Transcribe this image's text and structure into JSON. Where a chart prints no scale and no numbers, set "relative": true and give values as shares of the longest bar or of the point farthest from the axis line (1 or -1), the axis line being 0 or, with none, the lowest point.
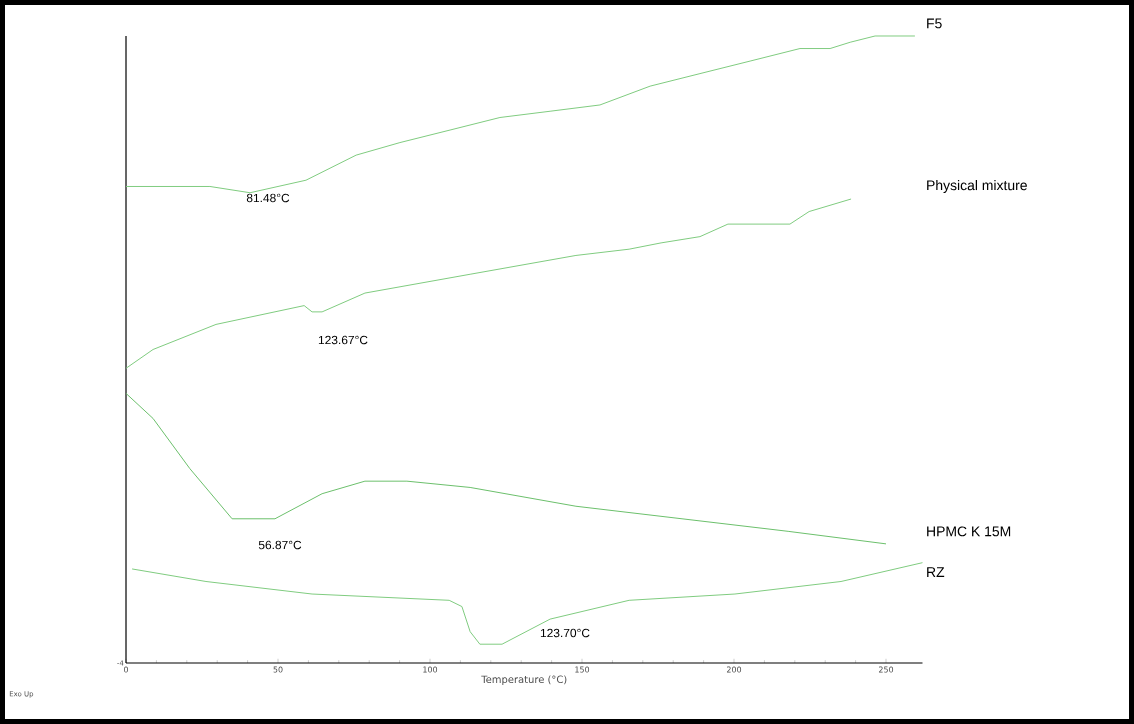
{
  "chart_data": {
    "type": "line",
    "relative": true,
    "xlabel": "Temperature (°C)",
    "xlim": [
      0,
      262
    ],
    "xticks": [
      0,
      50,
      100,
      150,
      200,
      250
    ],
    "marker": "none",
    "line_style": "solid",
    "series": [
      {
        "name": "F5",
        "color": "#80cc80",
        "x": [
          0,
          4.6,
          14.5,
          27.6,
          40.8,
          59.2,
          75.7,
          90.1,
          106.6,
          123,
          139.5,
          155.9,
          172.4,
          188.8,
          205.3,
          221.7,
          231.6,
          238.2,
          246.4,
          251.3,
          259.5
        ],
        "values": [
          0.76,
          0.76,
          0.76,
          0.76,
          0.75,
          0.77,
          0.81,
          0.83,
          0.85,
          0.87,
          0.88,
          0.89,
          0.92,
          0.94,
          0.96,
          0.98,
          0.98,
          0.99,
          1.0,
          1.0,
          1.0
        ]
      },
      {
        "name": "Physical mixture",
        "color": "#80cc80",
        "x": [
          0,
          8.9,
          29.6,
          58.6,
          61.2,
          64.5,
          78.6,
          113.2,
          148,
          165.5,
          176,
          188.8,
          198,
          214.1,
          218.4,
          224.7,
          238.5
        ],
        "values": [
          0.47,
          0.5,
          0.54,
          0.57,
          0.56,
          0.56,
          0.59,
          0.62,
          0.65,
          0.66,
          0.67,
          0.68,
          0.7,
          0.7,
          0.7,
          0.72,
          0.74
        ]
      },
      {
        "name": "HPMC K 15M",
        "color": "#6cc06c",
        "x": [
          0,
          8.9,
          21,
          34.9,
          36.8,
          49,
          64.5,
          78.6,
          92.4,
          113.2,
          148,
          182.9,
          217.8,
          250
        ],
        "values": [
          0.43,
          0.39,
          0.31,
          0.23,
          0.23,
          0.23,
          0.27,
          0.29,
          0.29,
          0.28,
          0.25,
          0.23,
          0.21,
          0.19
        ]
      },
      {
        "name": "RZ",
        "color": "#80cc80",
        "x": [
          2,
          26.3,
          61.2,
          106.3,
          110.5,
          113.2,
          116.4,
          123.7,
          139.5,
          165.5,
          200.3,
          235.2,
          262
        ],
        "values": [
          0.15,
          0.13,
          0.11,
          0.1,
          0.09,
          0.05,
          0.03,
          0.03,
          0.07,
          0.1,
          0.11,
          0.13,
          0.16
        ]
      }
    ],
    "annotations": [
      "81.48°C",
      "123.67°C",
      "56.87°C",
      "123.70°C",
      "Exo Up",
      "-4"
    ]
  }
}
